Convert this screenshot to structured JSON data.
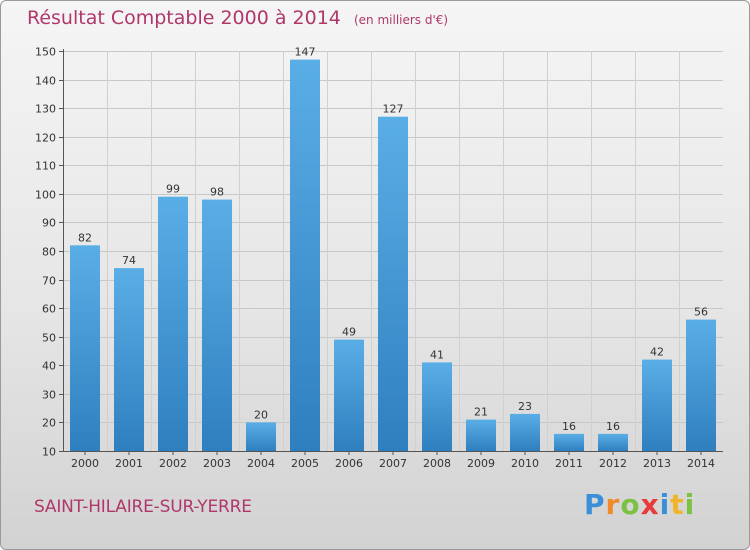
{
  "header": {
    "title": "Résultat Comptable 2000 à 2014",
    "unit": "(en milliers d'€)"
  },
  "footer": {
    "commune": "SAINT-HILAIRE-SUR-YERRE",
    "logo_text": "Proxiti"
  },
  "colors": {
    "title": "#b0376b",
    "bar_light": "#5aaee6",
    "bar_dark": "#2f7fbf",
    "logo_p": "#3a8fd8",
    "logo_r": "#f08a2a",
    "logo_o": "#7cc242",
    "logo_x": "#e83a3a",
    "logo_i1": "#3a8fd8",
    "logo_t": "#f0b42a",
    "logo_i2": "#7cc242"
  },
  "chart_data": {
    "type": "bar",
    "title": "Résultat Comptable 2000 à 2014",
    "subtitle": "(en milliers d'€)",
    "xlabel": "",
    "ylabel": "",
    "categories": [
      "2000",
      "2001",
      "2002",
      "2003",
      "2004",
      "2005",
      "2006",
      "2007",
      "2008",
      "2009",
      "2010",
      "2011",
      "2012",
      "2013",
      "2014"
    ],
    "values": [
      82,
      74,
      99,
      98,
      20,
      147,
      49,
      127,
      41,
      21,
      23,
      16,
      16,
      42,
      56
    ],
    "ylim": [
      10,
      150
    ],
    "yticks": [
      10,
      20,
      30,
      40,
      50,
      60,
      70,
      80,
      90,
      100,
      110,
      120,
      130,
      140,
      150
    ],
    "grid": true,
    "legend": "none"
  }
}
